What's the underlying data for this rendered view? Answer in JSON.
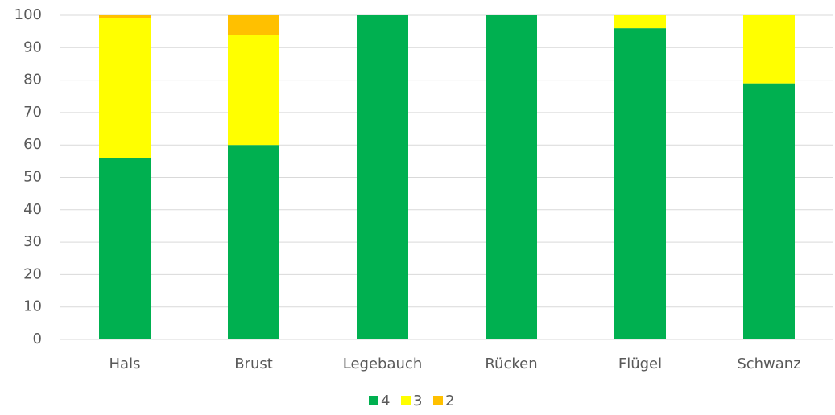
{
  "chart_data": {
    "type": "stacked_bar",
    "categories": [
      "Hals",
      "Brust",
      "Legebauch",
      "Rücken",
      "Flügel",
      "Schwanz"
    ],
    "series": [
      {
        "name": "4",
        "color": "#00b050",
        "values": [
          56,
          60,
          100,
          100,
          96,
          79
        ]
      },
      {
        "name": "3",
        "color": "#ffff00",
        "values": [
          43,
          34,
          0,
          0,
          4,
          21
        ]
      },
      {
        "name": "2",
        "color": "#ffc000",
        "values": [
          1,
          6,
          0,
          0,
          0,
          0
        ]
      }
    ],
    "ylim": [
      0,
      100
    ],
    "yticks": [
      0,
      10,
      20,
      30,
      40,
      50,
      60,
      70,
      80,
      90,
      100
    ],
    "grid": true,
    "legend": "bottom"
  }
}
